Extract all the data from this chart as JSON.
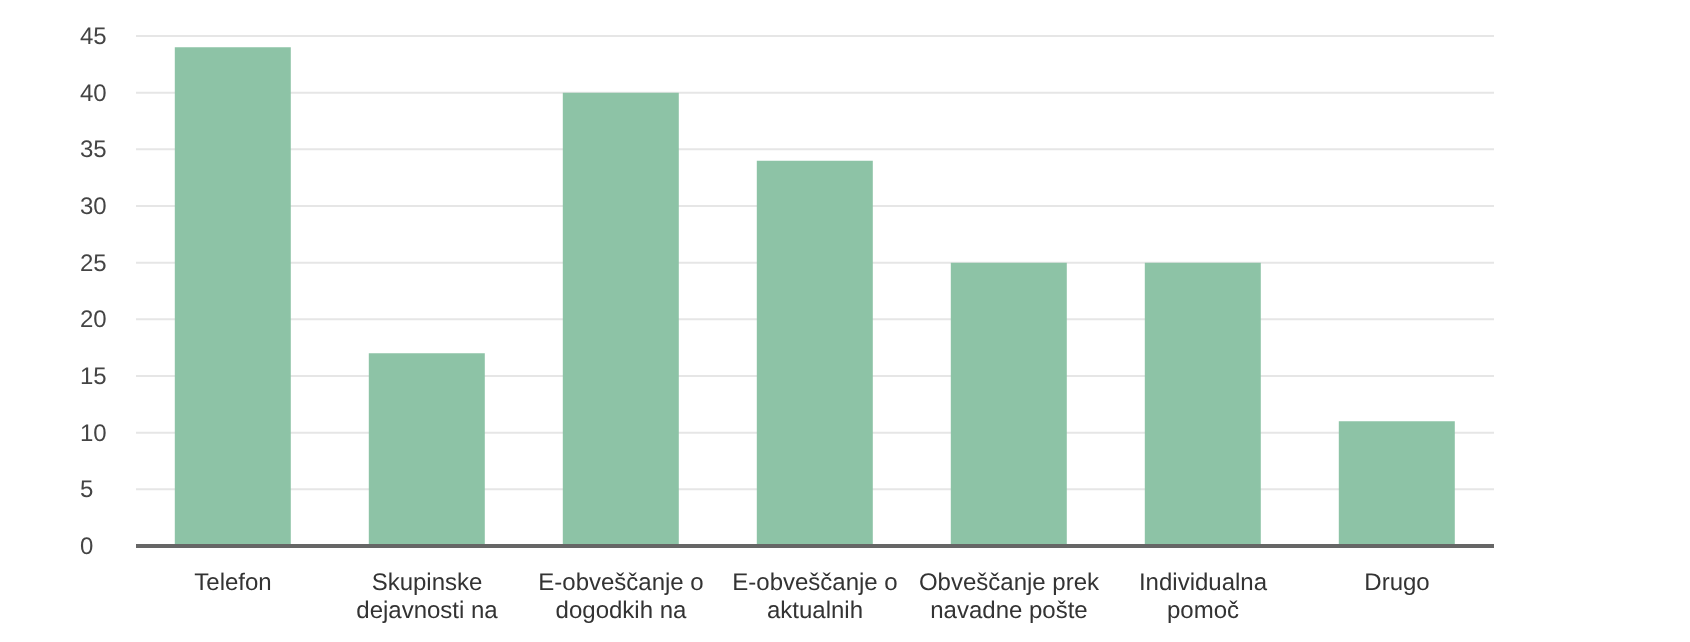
{
  "chart_data": {
    "type": "bar",
    "categories": [
      "Telefon",
      "Skupinske dejavnosti na",
      "E-obveščanje o dogodkih na",
      "E-obveščanje o aktualnih",
      "Obveščanje prek navadne pošte",
      "Individualna pomoč",
      "Drugo"
    ],
    "values": [
      44,
      17,
      40,
      34,
      25,
      25,
      11
    ],
    "color": "#8dc3a6",
    "ylim": [
      0,
      45
    ],
    "yticks": [
      0,
      5,
      10,
      15,
      20,
      25,
      30,
      35,
      40,
      45
    ],
    "grid": "y"
  }
}
